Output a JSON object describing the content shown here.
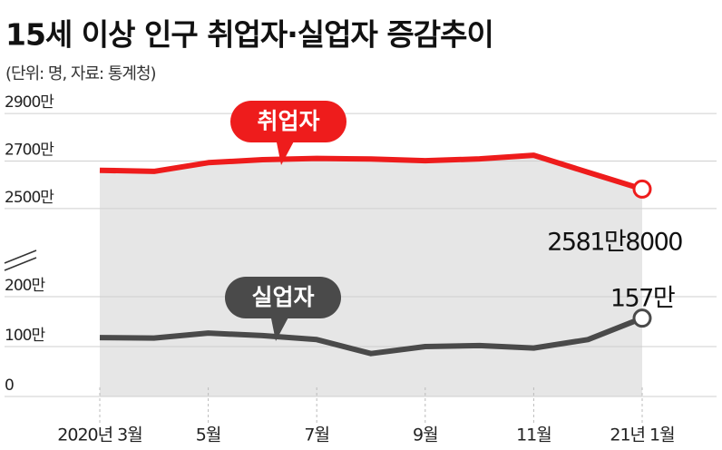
{
  "chart_data": {
    "type": "line",
    "title": "15세 이상 인구 취업자·실업자 증감추이",
    "subtitle": "(단위: 명, 자료: 통계청)",
    "categories": [
      "2020년 3월",
      null,
      "5월",
      null,
      "7월",
      null,
      "9월",
      null,
      "11월",
      null,
      "21년 1월"
    ],
    "ylim": [
      2400,
      2950
    ],
    "yticks": [
      {
        "value": 2500,
        "label": "2500만"
      },
      {
        "value": 2700,
        "label": "2700만"
      },
      {
        "value": 2900,
        "label": "2900만"
      }
    ],
    "y2lim": [
      0,
      250
    ],
    "y2ticks": [
      0,
      {
        "value": 100,
        "label": "100만"
      },
      {
        "value": 200,
        "label": "200만"
      }
    ],
    "grid": true,
    "series": [
      {
        "name": "취업자",
        "color": "#ee1c1c",
        "values": [
          2660.9,
          2656.2,
          2693.0,
          2705.5,
          2710.6,
          2708.5,
          2701.2,
          2708.8,
          2724.1,
          2652.6,
          2581.8
        ],
        "value_labels": [
          null,
          null,
          null,
          null,
          null,
          null,
          null,
          null,
          null,
          null,
          "2581만8000"
        ]
      },
      {
        "name": "실업자",
        "color": "#4a4a4a",
        "axis": "y2",
        "values": [
          118,
          117,
          127,
          122,
          114,
          86,
          100,
          102,
          97,
          114,
          157
        ],
        "value_labels": [
          null,
          null,
          null,
          null,
          null,
          null,
          null,
          null,
          null,
          null,
          "157만"
        ]
      }
    ]
  }
}
